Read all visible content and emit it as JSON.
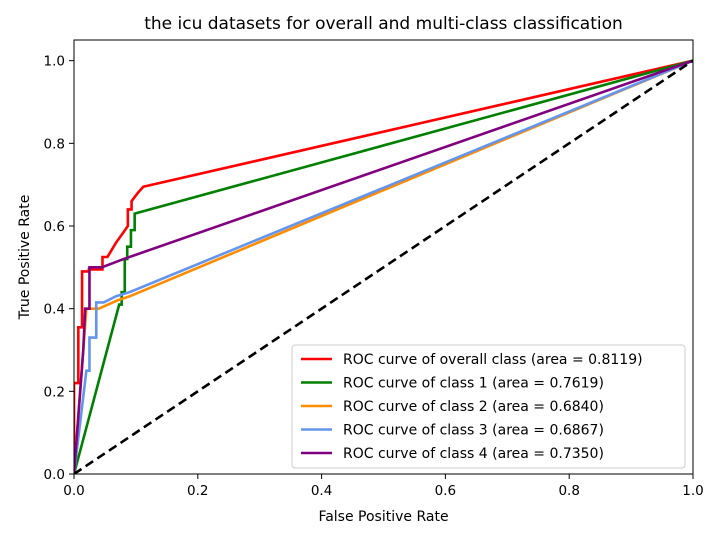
{
  "chart_data": {
    "type": "line",
    "title": "the icu datasets for overall and multi-class classification",
    "xlabel": "False Positive Rate",
    "ylabel": "True Positive Rate",
    "xlim": [
      0.0,
      1.0
    ],
    "ylim": [
      0.0,
      1.05
    ],
    "xticks": [
      0.0,
      0.2,
      0.4,
      0.6,
      0.8,
      1.0
    ],
    "yticks": [
      0.0,
      0.2,
      0.4,
      0.6,
      0.8,
      1.0
    ],
    "xtick_labels": [
      "0.0",
      "0.2",
      "0.4",
      "0.6",
      "0.8",
      "1.0"
    ],
    "ytick_labels": [
      "0.0",
      "0.2",
      "0.4",
      "0.6",
      "0.8",
      "1.0"
    ],
    "grid": false,
    "legend_position": "lower-right",
    "series": [
      {
        "name": "ROC curve of overall class (area = 0.8119)",
        "color": "#ff0000",
        "style": "solid",
        "points": [
          [
            0,
            0
          ],
          [
            0,
            0.22
          ],
          [
            0.007,
            0.22
          ],
          [
            0.007,
            0.355
          ],
          [
            0.013,
            0.355
          ],
          [
            0.013,
            0.49
          ],
          [
            0.024,
            0.49
          ],
          [
            0.024,
            0.495
          ],
          [
            0.046,
            0.495
          ],
          [
            0.046,
            0.525
          ],
          [
            0.054,
            0.525
          ],
          [
            0.068,
            0.56
          ],
          [
            0.08,
            0.585
          ],
          [
            0.087,
            0.6
          ],
          [
            0.087,
            0.64
          ],
          [
            0.093,
            0.64
          ],
          [
            0.093,
            0.66
          ],
          [
            0.103,
            0.68
          ],
          [
            0.112,
            0.695
          ],
          [
            0.118,
            0.697
          ],
          [
            1.0,
            1.0
          ]
        ]
      },
      {
        "name": "ROC curve of class 1 (area = 0.7619)",
        "color": "#008000",
        "style": "solid",
        "points": [
          [
            0,
            0
          ],
          [
            0.073,
            0.41
          ],
          [
            0.077,
            0.41
          ],
          [
            0.077,
            0.44
          ],
          [
            0.082,
            0.44
          ],
          [
            0.082,
            0.52
          ],
          [
            0.086,
            0.52
          ],
          [
            0.086,
            0.55
          ],
          [
            0.092,
            0.55
          ],
          [
            0.092,
            0.59
          ],
          [
            0.098,
            0.59
          ],
          [
            0.098,
            0.63
          ],
          [
            1.0,
            1.0
          ]
        ]
      },
      {
        "name": "ROC curve of class 2 (area = 0.6840)",
        "color": "#ff8c00",
        "style": "solid",
        "points": [
          [
            0,
            0
          ],
          [
            0.02,
            0.4
          ],
          [
            0.04,
            0.4
          ],
          [
            0.07,
            0.42
          ],
          [
            0.09,
            0.43
          ],
          [
            1.0,
            1.0
          ]
        ]
      },
      {
        "name": "ROC curve of class 3 (area = 0.6867)",
        "color": "#6495ed",
        "style": "solid",
        "points": [
          [
            0,
            0
          ],
          [
            0.02,
            0.25
          ],
          [
            0.025,
            0.25
          ],
          [
            0.025,
            0.33
          ],
          [
            0.036,
            0.33
          ],
          [
            0.036,
            0.415
          ],
          [
            0.048,
            0.415
          ],
          [
            0.068,
            0.43
          ],
          [
            0.09,
            0.44
          ],
          [
            1.0,
            1.0
          ]
        ]
      },
      {
        "name": "ROC curve of class 4 (area = 0.7350)",
        "color": "#800080",
        "style": "solid",
        "points": [
          [
            0,
            0
          ],
          [
            0.015,
            0.3
          ],
          [
            0.018,
            0.4
          ],
          [
            0.025,
            0.4
          ],
          [
            0.025,
            0.5
          ],
          [
            0.045,
            0.5
          ],
          [
            0.08,
            0.52
          ],
          [
            1.0,
            1.0
          ]
        ]
      }
    ],
    "reference_line": {
      "color": "#000000",
      "style": "dashed",
      "points": [
        [
          0,
          0
        ],
        [
          1,
          1
        ]
      ]
    }
  }
}
